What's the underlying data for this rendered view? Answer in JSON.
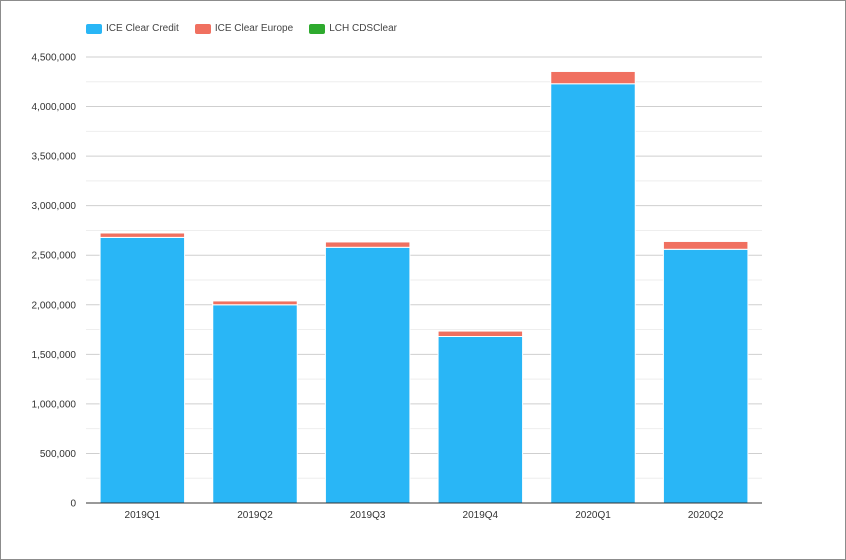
{
  "chart_data": {
    "type": "bar",
    "stacked": true,
    "categories": [
      "2019Q1",
      "2019Q2",
      "2019Q3",
      "2019Q4",
      "2020Q1",
      "2020Q2"
    ],
    "series": [
      {
        "name": "ICE Clear Credit",
        "color": "#29b6f6",
        "values": [
          2680000,
          2000000,
          2580000,
          1680000,
          4230000,
          2560000
        ]
      },
      {
        "name": "ICE Clear Europe",
        "color": "#f07060",
        "values": [
          45000,
          40000,
          55000,
          55000,
          125000,
          80000
        ]
      },
      {
        "name": "LCH CDSClear",
        "color": "#2eaa2e",
        "values": [
          5000,
          5000,
          5000,
          5000,
          10000,
          8000
        ]
      }
    ],
    "ylim": [
      0,
      4500000
    ],
    "yticks": [
      0,
      500000,
      1000000,
      1500000,
      2000000,
      2500000,
      3000000,
      3500000,
      4000000,
      4500000
    ],
    "ytick_labels": [
      "0",
      "500,000",
      "1,000,000",
      "1,500,000",
      "2,000,000",
      "2,500,000",
      "3,000,000",
      "3,500,000",
      "4,000,000",
      "4,500,000"
    ],
    "grid": true,
    "legend_position": "top-left"
  }
}
